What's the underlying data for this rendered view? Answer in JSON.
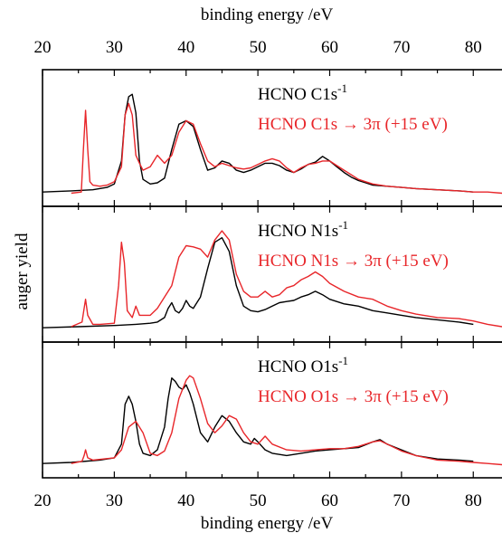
{
  "chart_data": {
    "type": "line",
    "title": "",
    "xlabel_top": "binding energy /eV",
    "xlabel_bottom": "binding energy /eV",
    "ylabel": "auger yield",
    "xlim": [
      20,
      84
    ],
    "xticks": [
      20,
      30,
      40,
      50,
      60,
      70,
      80
    ],
    "colors": {
      "core_ionized": "#000000",
      "resonant": "#e8262a"
    },
    "panels": [
      {
        "ylim": [
          0,
          100
        ],
        "legend": [
          {
            "prefix": "HCNO C1s",
            "sup": "-1",
            "suffix": "",
            "color": "#000000"
          },
          {
            "prefix": "HCNO C1s → 3π (+15 eV)",
            "sup": "",
            "suffix": "",
            "color": "#e8262a"
          }
        ],
        "series": [
          {
            "name": "HCNO C1s-1",
            "color": "#000000",
            "x": [
              20,
              24,
              27,
              29,
              30,
              31,
              31.5,
              32,
              32.5,
              33,
              33.5,
              34,
              35,
              36,
              37,
              38,
              39,
              40,
              41,
              42,
              43,
              44,
              45,
              46,
              47,
              48,
              49,
              50,
              51,
              52,
              53,
              54,
              55,
              56,
              57,
              58,
              59,
              60,
              61,
              62,
              63,
              64,
              65,
              66,
              68,
              70,
              72,
              75,
              78,
              80
            ],
            "y": [
              3,
              4,
              5,
              7,
              10,
              30,
              70,
              86,
              88,
              72,
              30,
              14,
              10,
              11,
              15,
              40,
              62,
              65,
              60,
              40,
              22,
              24,
              30,
              28,
              22,
              20,
              22,
              25,
              28,
              28,
              26,
              22,
              20,
              23,
              27,
              29,
              34,
              30,
              25,
              20,
              16,
              13,
              11,
              9,
              8,
              7,
              6,
              5,
              4,
              3
            ]
          },
          {
            "name": "HCNO C1s → 3π (+15 eV)",
            "color": "#e8262a",
            "x": [
              24,
              25.4,
              25.7,
              26,
              26.3,
              26.6,
              27,
              28,
              29,
              30,
              31,
              31.5,
              32,
              32.5,
              33,
              33.5,
              34,
              35,
              36,
              37,
              38,
              39,
              40,
              41,
              42,
              43,
              44,
              45,
              46,
              47,
              48,
              49,
              50,
              51,
              52,
              53,
              54,
              55,
              56,
              57,
              58,
              59,
              60,
              61,
              62,
              63,
              64,
              65,
              66,
              68,
              70,
              72,
              75,
              78,
              80,
              82,
              84
            ],
            "y": [
              2,
              3,
              40,
              74,
              40,
              12,
              9,
              8,
              9,
              12,
              25,
              70,
              80,
              70,
              35,
              28,
              22,
              25,
              35,
              28,
              35,
              55,
              65,
              62,
              45,
              30,
              25,
              28,
              26,
              24,
              23,
              24,
              27,
              30,
              32,
              30,
              24,
              20,
              24,
              27,
              28,
              30,
              30,
              26,
              22,
              18,
              14,
              12,
              10,
              8,
              7,
              6,
              5,
              4,
              3,
              3,
              2
            ]
          }
        ]
      },
      {
        "ylim": [
          0,
          100
        ],
        "legend": [
          {
            "prefix": "HCNO N1s",
            "sup": "-1",
            "suffix": "",
            "color": "#000000"
          },
          {
            "prefix": "HCNO N1s → 3π (+15 eV)",
            "sup": "",
            "suffix": "",
            "color": "#e8262a"
          }
        ],
        "series": [
          {
            "name": "HCNO N1s-1",
            "color": "#000000",
            "x": [
              20,
              25,
              30,
              33,
              35,
              36,
              37,
              37.5,
              38,
              38.5,
              39,
              39.5,
              40,
              40.5,
              41,
              42,
              43,
              44,
              45,
              46,
              47,
              48,
              49,
              50,
              51,
              52,
              53,
              54,
              55,
              56,
              57,
              58,
              59,
              60,
              62,
              64,
              66,
              68,
              70,
              72,
              75,
              78,
              80
            ],
            "y": [
              3,
              4,
              5,
              6,
              7,
              8,
              12,
              20,
              25,
              18,
              16,
              20,
              27,
              22,
              20,
              30,
              55,
              78,
              82,
              70,
              40,
              22,
              18,
              17,
              19,
              22,
              25,
              26,
              27,
              30,
              32,
              35,
              32,
              28,
              24,
              22,
              18,
              16,
              14,
              12,
              10,
              8,
              6
            ]
          },
          {
            "name": "HCNO N1s → 3π (+15 eV)",
            "color": "#e8262a",
            "x": [
              24,
              25.5,
              25.8,
              26,
              26.3,
              27,
              28,
              30,
              30.6,
              31,
              31.4,
              31.8,
              32.5,
              33,
              33.5,
              35,
              36,
              37,
              38,
              39,
              40,
              41,
              42,
              43,
              44,
              45,
              46,
              47,
              48,
              49,
              50,
              51,
              52,
              53,
              54,
              55,
              56,
              57,
              58,
              59,
              60,
              62,
              64,
              66,
              68,
              70,
              72,
              75,
              78,
              80,
              82,
              84
            ],
            "y": [
              4,
              8,
              20,
              28,
              14,
              6,
              6,
              7,
              40,
              78,
              60,
              18,
              12,
              22,
              14,
              14,
              20,
              30,
              40,
              65,
              75,
              74,
              72,
              65,
              80,
              88,
              80,
              50,
              35,
              30,
              30,
              35,
              30,
              32,
              38,
              40,
              45,
              48,
              52,
              48,
              42,
              35,
              30,
              28,
              22,
              18,
              15,
              12,
              11,
              9,
              6,
              4
            ]
          }
        ]
      },
      {
        "ylim": [
          0,
          100
        ],
        "legend": [
          {
            "prefix": "HCNO O1s",
            "sup": "-1",
            "suffix": "",
            "color": "#000000"
          },
          {
            "prefix": "HCNO O1s → 3π (+15 eV)",
            "sup": "",
            "suffix": "",
            "color": "#e8262a"
          }
        ],
        "series": [
          {
            "name": "HCNO O1s-1",
            "color": "#000000",
            "x": [
              20,
              24,
              28,
              30,
              31,
              31.5,
              32,
              32.5,
              33,
              33.5,
              34,
              35,
              36,
              37,
              37.5,
              38,
              38.5,
              39,
              39.5,
              40,
              40.5,
              41,
              42,
              43,
              44,
              45,
              46,
              47,
              48,
              49,
              49.5,
              50,
              51,
              52,
              54,
              56,
              58,
              60,
              62,
              64,
              66,
              67,
              68,
              70,
              72,
              75,
              78,
              80
            ],
            "y": [
              3,
              4,
              6,
              8,
              20,
              55,
              62,
              55,
              40,
              20,
              12,
              10,
              15,
              35,
              60,
              78,
              75,
              70,
              68,
              72,
              65,
              55,
              30,
              22,
              35,
              45,
              40,
              30,
              22,
              20,
              25,
              22,
              15,
              12,
              10,
              12,
              14,
              15,
              16,
              17,
              22,
              24,
              20,
              15,
              10,
              7,
              6,
              5
            ]
          },
          {
            "name": "HCNO O1s → 3π (+15 eV)",
            "color": "#e8262a",
            "x": [
              24,
              25.5,
              25.8,
              26,
              26.3,
              27,
              30,
              31,
              32,
              33,
              34,
              35,
              36,
              37,
              38,
              39,
              40,
              40.5,
              41,
              42,
              43,
              44,
              45,
              46,
              47,
              48,
              49,
              50,
              51,
              52,
              54,
              56,
              58,
              60,
              62,
              64,
              66,
              67,
              68,
              70,
              72,
              75,
              78,
              80,
              82,
              84
            ],
            "y": [
              3,
              5,
              10,
              15,
              8,
              6,
              8,
              15,
              35,
              40,
              30,
              12,
              10,
              14,
              30,
              60,
              76,
              80,
              78,
              60,
              38,
              30,
              36,
              45,
              42,
              30,
              22,
              20,
              27,
              20,
              15,
              14,
              15,
              16,
              16,
              18,
              22,
              23,
              20,
              14,
              10,
              6,
              5,
              4,
              3,
              2
            ]
          }
        ]
      }
    ]
  }
}
